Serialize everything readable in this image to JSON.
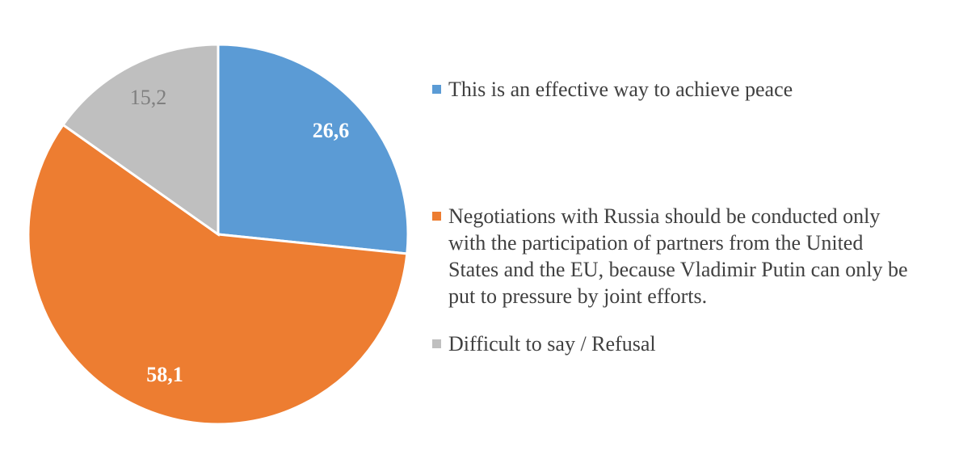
{
  "chart_data": {
    "type": "pie",
    "categories": [
      "This is an effective way to achieve peace",
      "Negotiations with Russia should be conducted only with the participation of partners from the United States and the EU, because Vladimir Putin can only be put to pressure by joint efforts.",
      "Difficult to say / Refusal"
    ],
    "values": [
      26.6,
      58.1,
      15.2
    ],
    "value_labels": [
      "26,6",
      "58,1",
      "15,2"
    ],
    "colors": [
      "#5b9bd5",
      "#ed7d31",
      "#bfbfbf"
    ],
    "legend": "right"
  }
}
